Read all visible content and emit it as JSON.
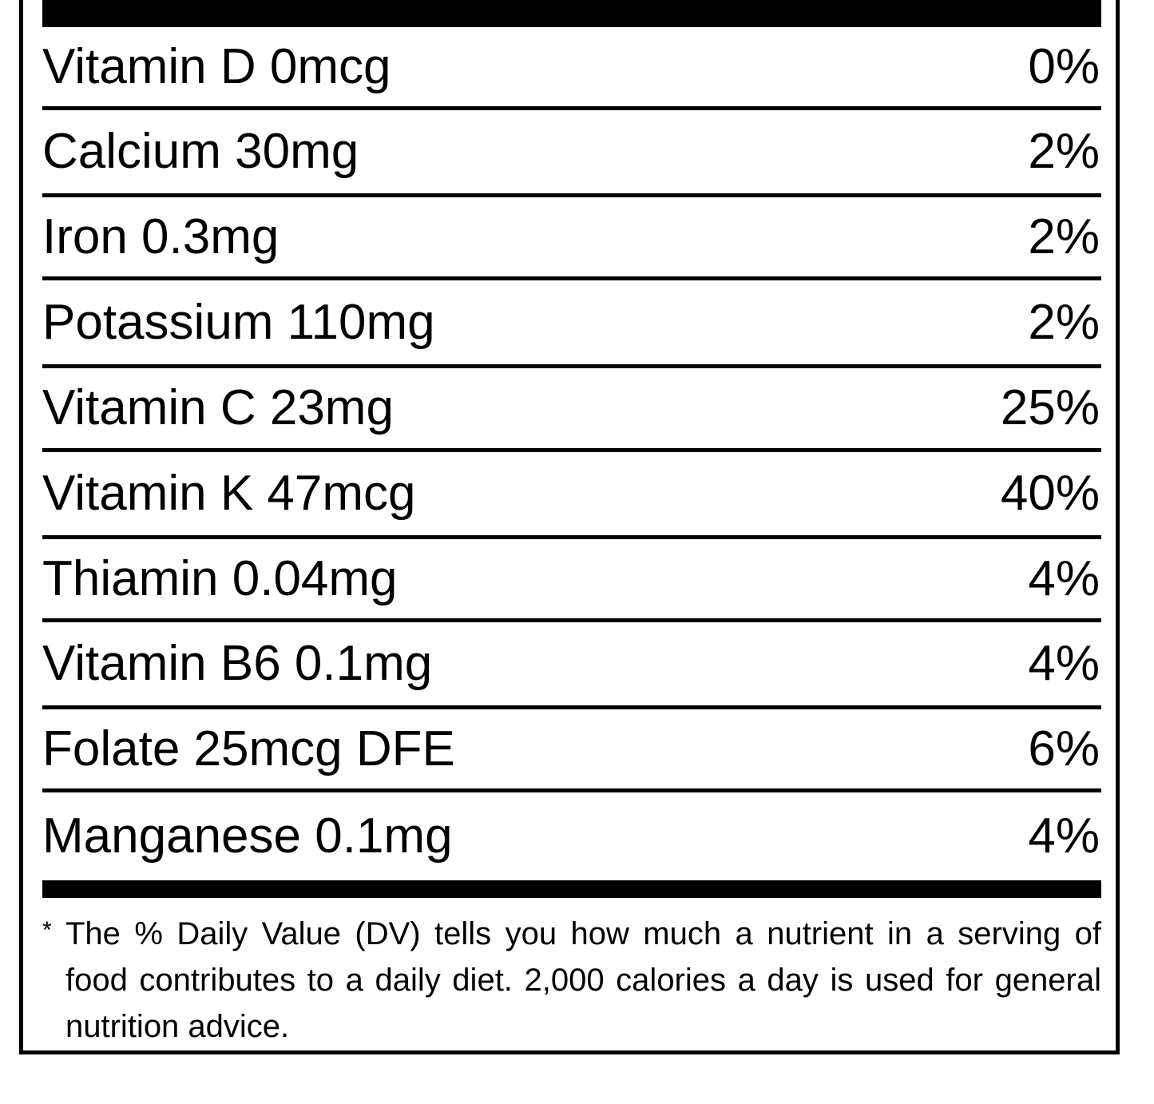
{
  "nutrients": [
    {
      "name": "Vitamin D 0mcg",
      "dv": "0%"
    },
    {
      "name": "Calcium 30mg",
      "dv": "2%"
    },
    {
      "name": "Iron 0.3mg",
      "dv": "2%"
    },
    {
      "name": "Potassium 110mg",
      "dv": "2%"
    },
    {
      "name": "Vitamin C 23mg",
      "dv": "25%"
    },
    {
      "name": "Vitamin K 47mcg",
      "dv": "40%"
    },
    {
      "name": "Thiamin 0.04mg",
      "dv": "4%"
    },
    {
      "name": "Vitamin B6 0.1mg",
      "dv": "4%"
    },
    {
      "name": "Folate 25mcg DFE",
      "dv": "6%"
    },
    {
      "name": "Manganese 0.1mg",
      "dv": "4%"
    }
  ],
  "footnote": {
    "marker": "*",
    "text": "The % Daily Value (DV) tells you how much a nutrient in a serving of food contributes to a daily diet. 2,000 calories a day is used for general nutrition advice."
  }
}
